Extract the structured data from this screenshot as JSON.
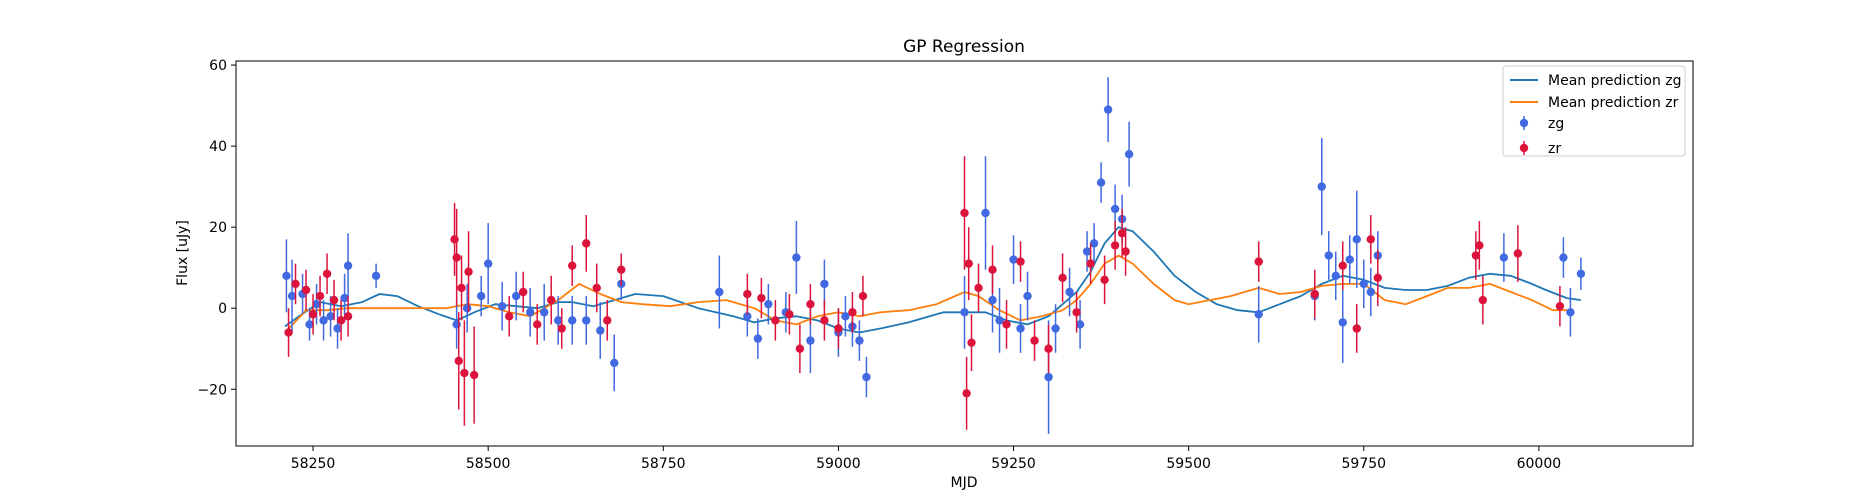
{
  "chart_data": {
    "type": "scatter",
    "title": "GP Regression",
    "xlabel": "MJD",
    "ylabel": "Flux [uJy]",
    "xlim": [
      58140,
      60220
    ],
    "ylim": [
      -34,
      61
    ],
    "xticks": [
      58250,
      58500,
      58750,
      59000,
      59250,
      59500,
      59750,
      60000
    ],
    "yticks": [
      -20,
      0,
      20,
      40,
      60
    ],
    "legend_position": "top-right",
    "colors": {
      "mean_zg": "#1f77b4",
      "mean_zr": "#ff7f0e",
      "points_zg": "#4169e1",
      "points_zr": "#dc143c"
    },
    "series": [
      {
        "name": "Mean prediction zg",
        "kind": "line",
        "x": [
          58210,
          58230,
          58260,
          58290,
          58320,
          58345,
          58370,
          58400,
          58430,
          58455,
          58480,
          58510,
          58540,
          58570,
          58600,
          58620,
          58650,
          58680,
          58710,
          58750,
          58800,
          58850,
          58880,
          58910,
          58940,
          58970,
          59000,
          59030,
          59060,
          59100,
          59150,
          59180,
          59210,
          59240,
          59270,
          59300,
          59320,
          59340,
          59360,
          59380,
          59400,
          59420,
          59450,
          59480,
          59510,
          59540,
          59570,
          59600,
          59630,
          59660,
          59690,
          59720,
          59750,
          59780,
          59810,
          59840,
          59870,
          59900,
          59930,
          59960,
          59990,
          60010,
          60040,
          60060
        ],
        "y": [
          -4.5,
          -2,
          1.5,
          0.5,
          1.5,
          3.5,
          3,
          0.5,
          -1.5,
          -3,
          -1,
          1,
          0.5,
          0,
          1.5,
          1.5,
          0.5,
          2,
          3.5,
          3,
          0,
          -2,
          -3.5,
          -2.5,
          -2,
          -3,
          -5,
          -6,
          -5,
          -3.5,
          -1,
          -1,
          -1,
          -3,
          -4,
          -2,
          1,
          4,
          9,
          16,
          20,
          19,
          14,
          8,
          4,
          1,
          -0.5,
          -1,
          1,
          3,
          6,
          8,
          7,
          5,
          4.5,
          4.5,
          5.5,
          7.5,
          8.5,
          8,
          6,
          4.5,
          2.5,
          2
        ]
      },
      {
        "name": "Mean prediction zr",
        "kind": "line",
        "x": [
          58210,
          58240,
          58270,
          58300,
          58330,
          58360,
          58400,
          58440,
          58470,
          58500,
          58530,
          58560,
          58600,
          58630,
          58660,
          58690,
          58720,
          58760,
          58800,
          58840,
          58880,
          58910,
          58940,
          58970,
          59000,
          59030,
          59060,
          59100,
          59140,
          59180,
          59200,
          59230,
          59260,
          59290,
          59320,
          59340,
          59360,
          59380,
          59400,
          59420,
          59450,
          59480,
          59500,
          59530,
          59560,
          59600,
          59630,
          59660,
          59690,
          59720,
          59750,
          59780,
          59810,
          59840,
          59870,
          59900,
          59930,
          59960,
          59990,
          60020,
          60040
        ],
        "y": [
          -6,
          -0.5,
          -0.5,
          0,
          0,
          0,
          0,
          0,
          1,
          0.5,
          -1,
          -2,
          2,
          6,
          3.5,
          1.5,
          1,
          0.5,
          1.5,
          2,
          0,
          -3,
          -4,
          -2,
          -1,
          -2,
          -1,
          -0.5,
          1,
          4,
          3,
          -0.5,
          -3,
          -2,
          -0.5,
          2,
          6,
          11,
          13,
          11,
          6,
          2,
          1,
          2,
          3,
          5,
          3.5,
          4,
          5.5,
          6,
          6,
          2,
          1,
          3,
          5,
          5,
          6,
          4,
          2,
          -0.5,
          -0.5
        ]
      },
      {
        "name": "zg",
        "kind": "errorbar",
        "x": [
          58212,
          58220,
          58235,
          58245,
          58255,
          58265,
          58275,
          58285,
          58295,
          58300,
          58340,
          58455,
          58470,
          58490,
          58500,
          58520,
          58540,
          58560,
          58580,
          58600,
          58620,
          58640,
          58660,
          58680,
          58690,
          58830,
          58870,
          58885,
          58900,
          58925,
          58940,
          58960,
          58980,
          59000,
          59010,
          59020,
          59030,
          59040,
          59180,
          59210,
          59220,
          59230,
          59250,
          59260,
          59270,
          59300,
          59310,
          59330,
          59345,
          59355,
          59365,
          59375,
          59385,
          59395,
          59405,
          59415,
          59600,
          59680,
          59690,
          59700,
          59710,
          59720,
          59730,
          59740,
          59750,
          59760,
          59770,
          59950,
          60035,
          60045,
          60060
        ],
        "y": [
          8,
          3,
          3.5,
          -4,
          1,
          -3,
          -2,
          -5,
          2.5,
          10.5,
          8,
          -4,
          0,
          3,
          11,
          0.5,
          3,
          -1,
          -1,
          -3,
          -3,
          -3,
          -5.5,
          -13.5,
          6,
          4,
          -2,
          -7.5,
          1,
          -1,
          12.5,
          -8,
          6,
          -6,
          -2,
          -4.5,
          -8,
          -17,
          -1,
          23.5,
          2,
          -3,
          12,
          -5,
          3,
          -17,
          -5,
          4,
          -4,
          14,
          16,
          31,
          49,
          24.5,
          22,
          38,
          -1.5,
          3,
          30,
          13,
          8,
          -3.5,
          12,
          17,
          6,
          4,
          13,
          12.5,
          12.5,
          -1,
          8.5
        ],
        "yerr": [
          9,
          9,
          5,
          4,
          5,
          5,
          5,
          5,
          6,
          8,
          3,
          6,
          6,
          5,
          10,
          6,
          6,
          6,
          7,
          6,
          6,
          6,
          7,
          7,
          4,
          9,
          5,
          5,
          5,
          5,
          9,
          8,
          6,
          6,
          5,
          5,
          5,
          5,
          9,
          14,
          8,
          8,
          6,
          6,
          6,
          14,
          6,
          6,
          6,
          5,
          5,
          5,
          8,
          6,
          6,
          8,
          7,
          6,
          12,
          6,
          6,
          10,
          6,
          12,
          6,
          6,
          6,
          6,
          5,
          6,
          4
        ]
      },
      {
        "name": "zr",
        "kind": "errorbar",
        "x": [
          58215,
          58225,
          58240,
          58250,
          58260,
          58270,
          58280,
          58290,
          58300,
          58452,
          58455,
          58458,
          58462,
          58466,
          58472,
          58480,
          58530,
          58550,
          58570,
          58590,
          58605,
          58620,
          58640,
          58655,
          58670,
          58690,
          58870,
          58890,
          58910,
          58930,
          58945,
          58960,
          58980,
          59000,
          59020,
          59035,
          59180,
          59183,
          59186,
          59190,
          59200,
          59220,
          59240,
          59260,
          59280,
          59300,
          59320,
          59340,
          59360,
          59380,
          59395,
          59405,
          59410,
          59600,
          59680,
          59720,
          59740,
          59760,
          59770,
          59910,
          59915,
          59920,
          59970,
          60030
        ],
        "y": [
          -6,
          6,
          4.5,
          -1.5,
          3,
          8.5,
          2,
          -3,
          -2,
          17,
          12.5,
          -13,
          5,
          -16,
          9,
          -16.5,
          -2,
          4,
          -4,
          2,
          -5,
          10.5,
          16,
          5,
          -3,
          9.5,
          3.5,
          2.5,
          -3,
          -1.5,
          -10,
          1,
          -3,
          -5,
          -1,
          3,
          23.5,
          -21,
          11,
          -8.5,
          5,
          9.5,
          -4,
          11.5,
          -8,
          -10,
          7.5,
          -1,
          11,
          7,
          15.5,
          18.5,
          14,
          11.5,
          3.5,
          10.5,
          -5,
          17,
          7.5,
          13,
          15.5,
          2,
          13.5,
          0.5
        ],
        "yerr": [
          6,
          5,
          5,
          5,
          5,
          5,
          5,
          5,
          5,
          9,
          12,
          12,
          8,
          13,
          10,
          12,
          5,
          5,
          5,
          6,
          5,
          5,
          7,
          6,
          5,
          4,
          5,
          5,
          5,
          5,
          6,
          5,
          5,
          5,
          5,
          5,
          14,
          9,
          9,
          7,
          6,
          6,
          6,
          5,
          5,
          6,
          6,
          5,
          5,
          6,
          6,
          6,
          6,
          5,
          6,
          6,
          6,
          6,
          7,
          6,
          6,
          6,
          7,
          5
        ]
      }
    ]
  }
}
